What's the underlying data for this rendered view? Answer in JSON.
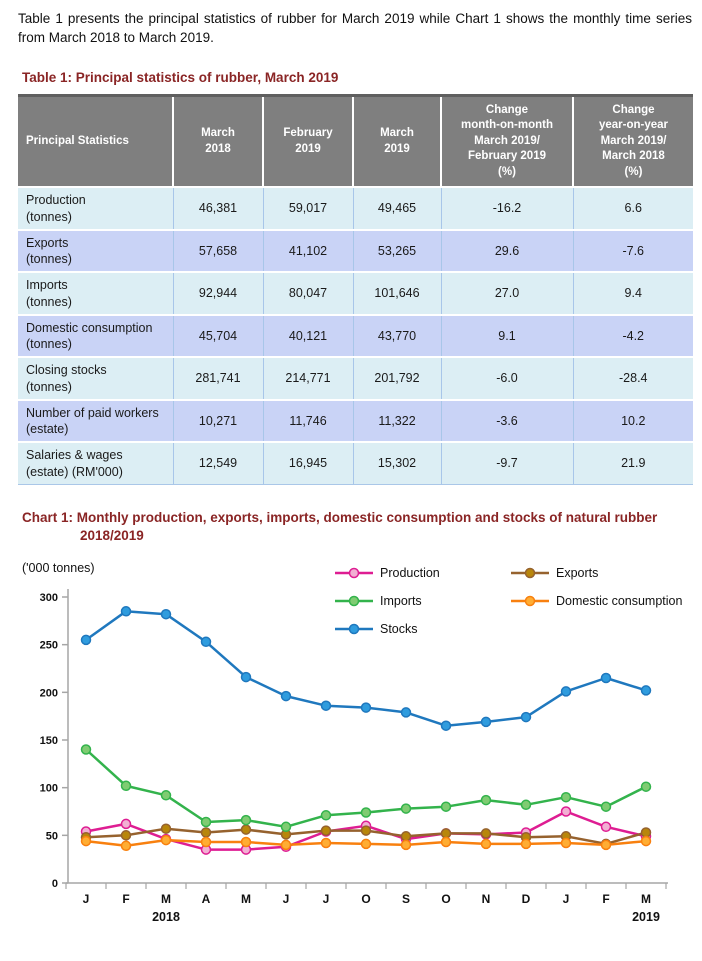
{
  "intro": "Table 1 presents the principal statistics of rubber for March 2019 while Chart 1 shows the monthly time series from March 2018 to March 2019.",
  "table": {
    "title": "Table 1: Principal statistics of rubber, March 2019",
    "columns": [
      [
        "Principal Statistics"
      ],
      [
        "March",
        "2018"
      ],
      [
        "February",
        "2019"
      ],
      [
        "March",
        "2019"
      ],
      [
        "Change",
        "month-on-month",
        "March 2019/",
        "February 2019",
        "(%)"
      ],
      [
        "Change",
        "year-on-year",
        "March 2019/",
        "March 2018",
        "(%)"
      ]
    ],
    "rows": [
      {
        "label": [
          "Production",
          "(tonnes)"
        ],
        "values": [
          "46,381",
          "59,017",
          "49,465",
          "-16.2",
          "6.6"
        ]
      },
      {
        "label": [
          "Exports",
          "(tonnes)"
        ],
        "values": [
          "57,658",
          "41,102",
          "53,265",
          "29.6",
          "-7.6"
        ]
      },
      {
        "label": [
          "Imports",
          "(tonnes)"
        ],
        "values": [
          "92,944",
          "80,047",
          "101,646",
          "27.0",
          "9.4"
        ]
      },
      {
        "label": [
          "Domestic consumption",
          "(tonnes)"
        ],
        "values": [
          "45,704",
          "40,121",
          "43,770",
          "9.1",
          "-4.2"
        ]
      },
      {
        "label": [
          "Closing stocks",
          "(tonnes)"
        ],
        "values": [
          "281,741",
          "214,771",
          "201,792",
          "-6.0",
          "-28.4"
        ]
      },
      {
        "label": [
          "Number of paid workers",
          "(estate)"
        ],
        "values": [
          "10,271",
          "11,746",
          "11,322",
          "-3.6",
          "10.2"
        ]
      },
      {
        "label": [
          "Salaries & wages",
          "(estate) (RM'000)"
        ],
        "values": [
          "12,549",
          "16,945",
          "15,302",
          "-9.7",
          "21.9"
        ]
      }
    ]
  },
  "chart": {
    "title_line1": "Chart 1: Monthly production, exports, imports, domestic consumption and stocks of natural rubber",
    "title_line2": "2018/2019",
    "unit_label": "('000 tonnes)",
    "legend_columns": [
      [
        "Production",
        "Imports",
        "Stocks"
      ],
      [
        "Exports",
        "Domestic consumption"
      ]
    ]
  },
  "chart_data": {
    "type": "line",
    "categories": [
      "J",
      "F",
      "M",
      "A",
      "M",
      "J",
      "J",
      "O",
      "S",
      "O",
      "N",
      "D",
      "J",
      "F",
      "M"
    ],
    "year_labels": [
      {
        "label": "2018",
        "index": 2
      },
      {
        "label": "2019",
        "index": 14
      }
    ],
    "ylim": [
      0,
      300
    ],
    "yticks": [
      0,
      50,
      100,
      150,
      200,
      250,
      300
    ],
    "grid": false,
    "legend_position": "top-right",
    "axis_color": "#a6a6a6",
    "series": [
      {
        "name": "Production",
        "color": "#de1d92",
        "marker_fill": "#f2afd3",
        "values": [
          54,
          62,
          46,
          35,
          35,
          38,
          54,
          60,
          46,
          52,
          51,
          53,
          75,
          59,
          49
        ]
      },
      {
        "name": "Exports",
        "color": "#96622e",
        "marker_fill": "#b8860b",
        "values": [
          48,
          50,
          57,
          53,
          56,
          51,
          55,
          55,
          49,
          52,
          52,
          48,
          49,
          41,
          53
        ]
      },
      {
        "name": "Imports",
        "color": "#33b34c",
        "marker_fill": "#7fcc72",
        "values": [
          140,
          102,
          92,
          64,
          66,
          59,
          71,
          74,
          78,
          80,
          87,
          82,
          90,
          80,
          101
        ]
      },
      {
        "name": "Domestic consumption",
        "color": "#f8800f",
        "marker_fill": "#ffad33",
        "values": [
          44,
          39,
          45,
          43,
          43,
          40,
          42,
          41,
          40,
          43,
          41,
          41,
          42,
          40,
          44
        ]
      },
      {
        "name": "Stocks",
        "color": "#1f78be",
        "marker_fill": "#2f9cde",
        "values": [
          255,
          285,
          282,
          253,
          216,
          196,
          186,
          184,
          179,
          165,
          169,
          174,
          201,
          215,
          202
        ]
      }
    ]
  }
}
